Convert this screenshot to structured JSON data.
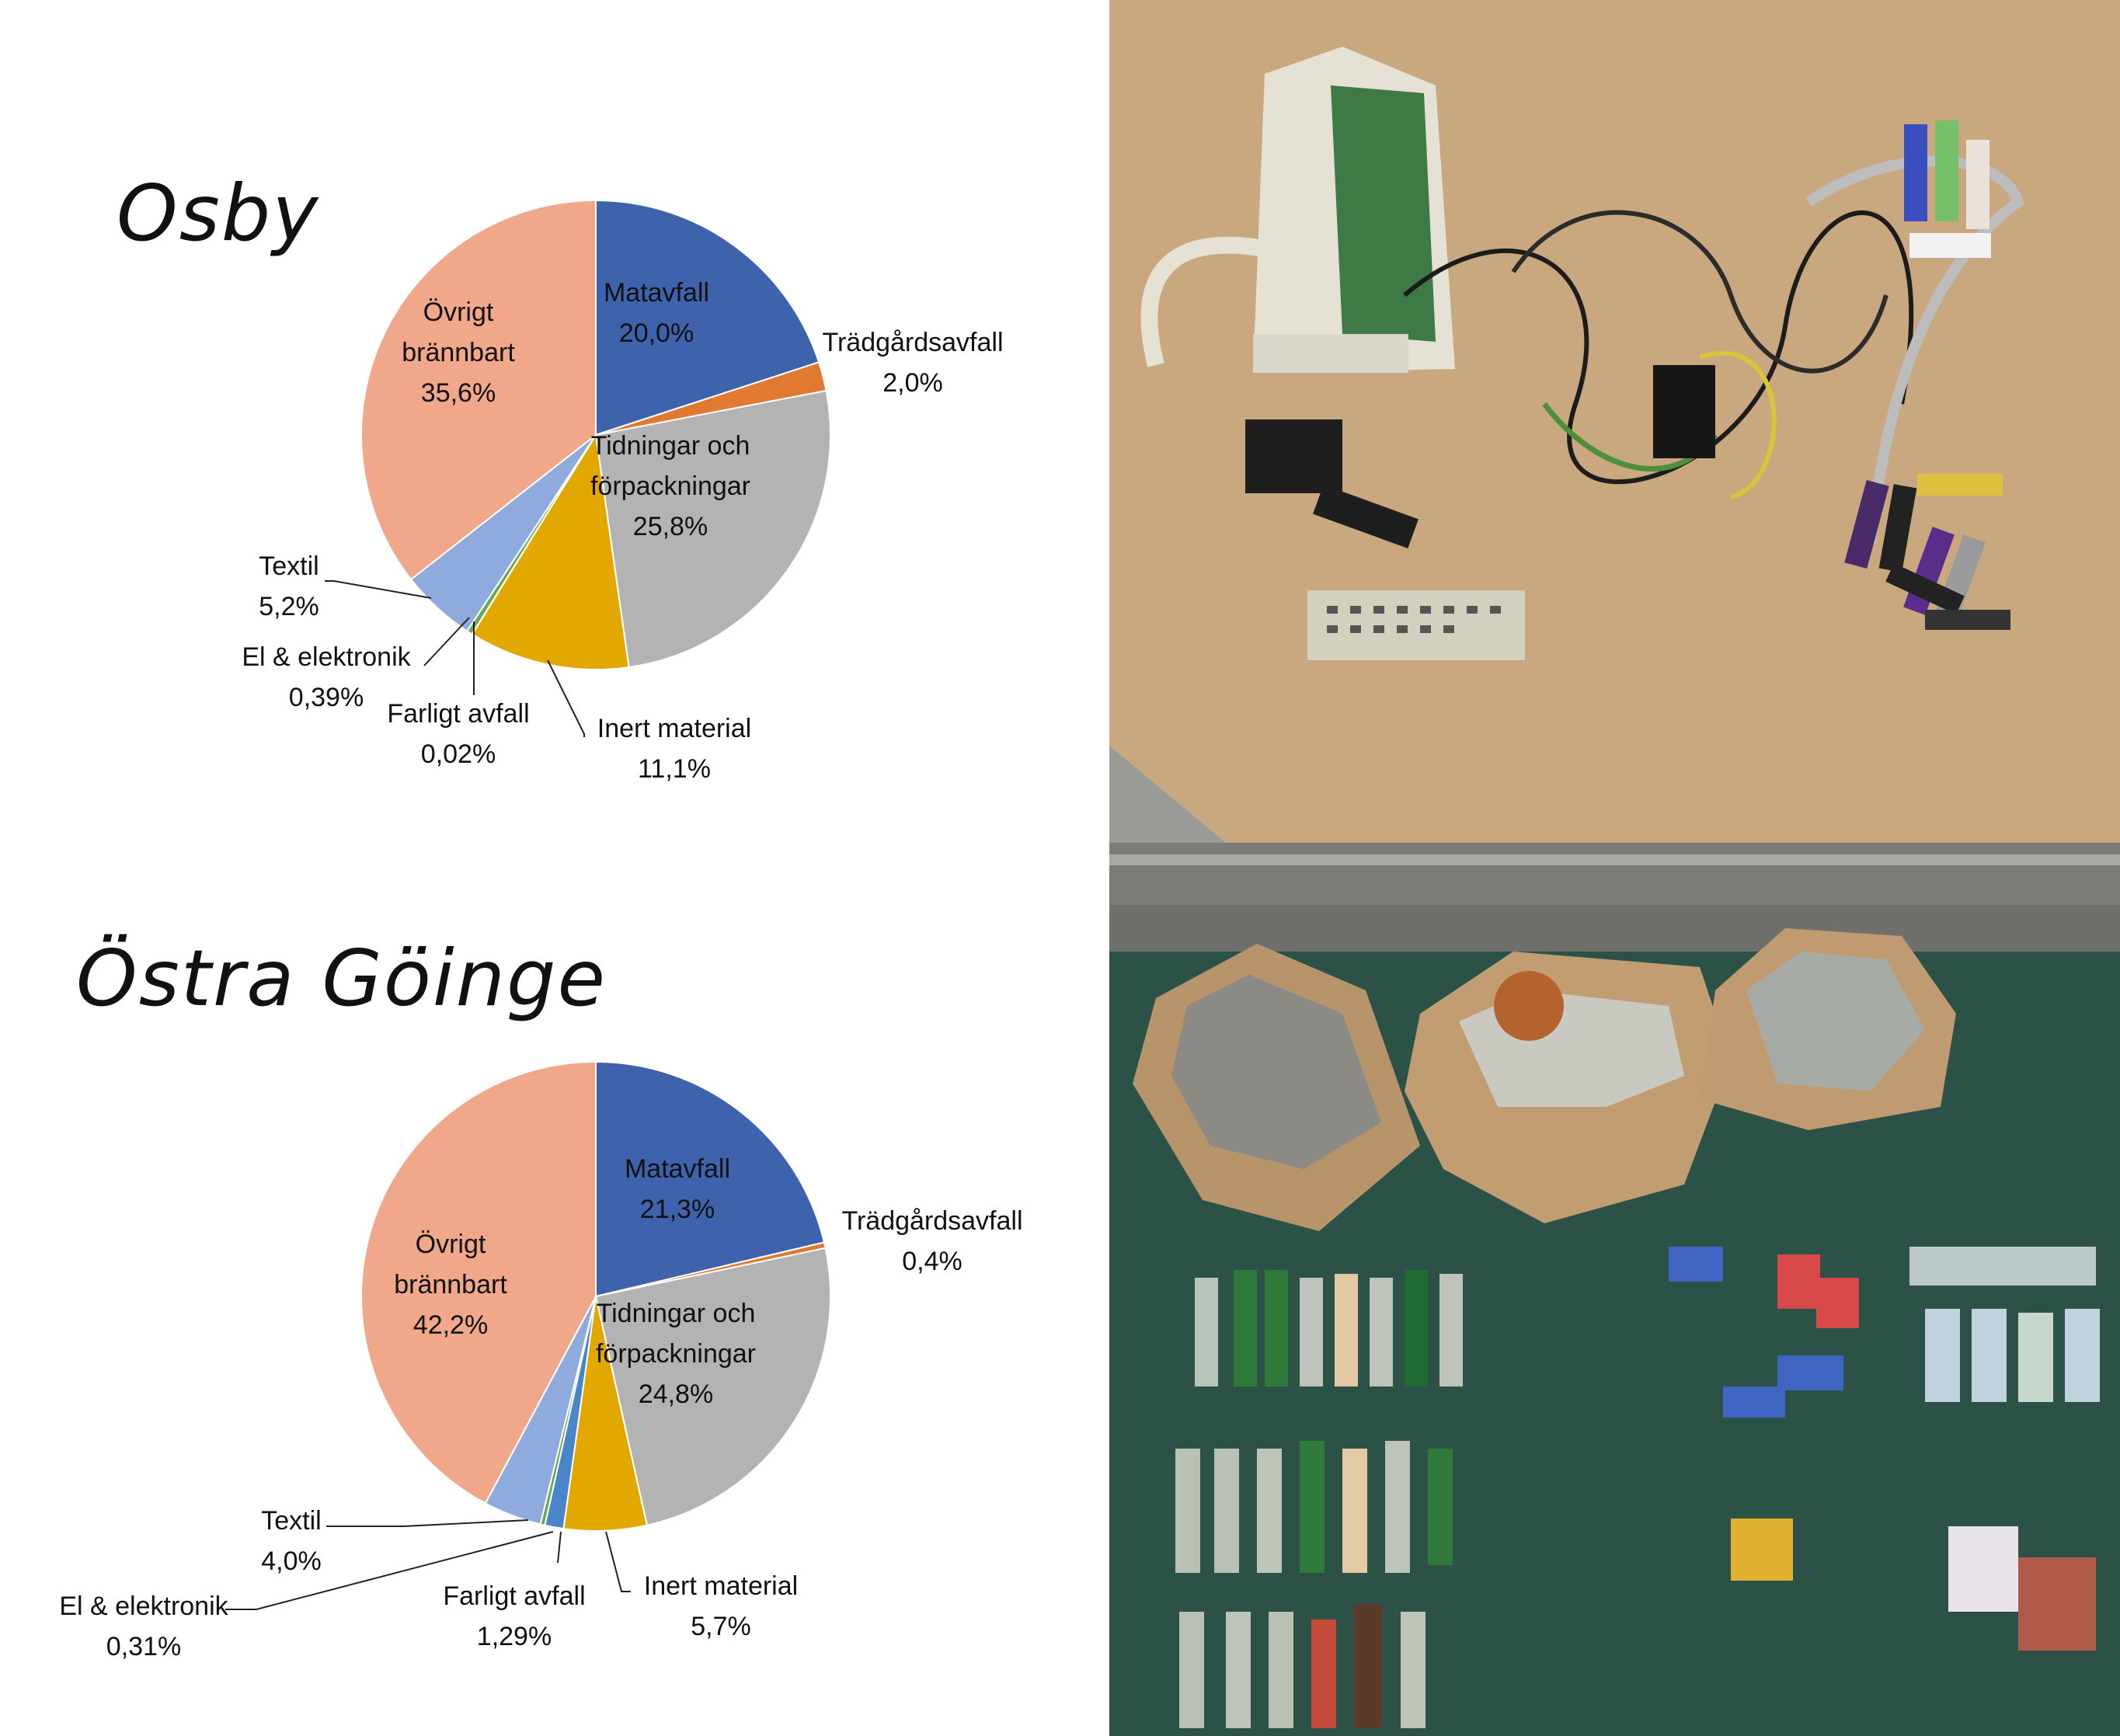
{
  "colors": {
    "matavfall": "#3f62ad",
    "tradgard": "#e07a30",
    "tidningar": "#b3b3b3",
    "inert": "#e3a800",
    "farligt": "#4a86c7",
    "el": "#6aa84f",
    "textil": "#8faadc",
    "ovrigt": "#f0a78a"
  },
  "chart_data": [
    {
      "type": "pie",
      "title": "Osby",
      "slices": [
        {
          "key": "matavfall",
          "label": [
            "Matavfall",
            "20,0%"
          ],
          "value": 20.0
        },
        {
          "key": "tradgard",
          "label": [
            "Trädgårdsavfall",
            "2,0%"
          ],
          "value": 2.0
        },
        {
          "key": "tidningar",
          "label": [
            "Tidningar och",
            "förpackningar",
            "25,8%"
          ],
          "value": 25.8
        },
        {
          "key": "inert",
          "label": [
            "Inert material",
            "11,1%"
          ],
          "value": 11.1
        },
        {
          "key": "farligt",
          "label": [
            "Farligt avfall",
            "0,02%"
          ],
          "value": 0.02
        },
        {
          "key": "el",
          "label": [
            "El & elektronik",
            "0,39%"
          ],
          "value": 0.39
        },
        {
          "key": "textil",
          "label": [
            "Textil",
            "5,2%"
          ],
          "value": 5.2
        },
        {
          "key": "ovrigt",
          "label": [
            "Övrigt",
            "brännbart",
            "35,6%"
          ],
          "value": 35.6
        }
      ]
    },
    {
      "type": "pie",
      "title": "Östra Göinge",
      "slices": [
        {
          "key": "matavfall",
          "label": [
            "Matavfall",
            "21,3%"
          ],
          "value": 21.3
        },
        {
          "key": "tradgard",
          "label": [
            "Trädgårdsavfall",
            "0,4%"
          ],
          "value": 0.4
        },
        {
          "key": "tidningar",
          "label": [
            "Tidningar och",
            "förpackningar",
            "24,8%"
          ],
          "value": 24.8
        },
        {
          "key": "inert",
          "label": [
            "Inert material",
            "5,7%"
          ],
          "value": 5.7
        },
        {
          "key": "farligt",
          "label": [
            "Farligt avfall",
            "1,29%"
          ],
          "value": 1.29
        },
        {
          "key": "el",
          "label": [
            "El & elektronik",
            "0,31%"
          ],
          "value": 0.31
        },
        {
          "key": "textil",
          "label": [
            "Textil",
            "4,0%"
          ],
          "value": 4.0
        },
        {
          "key": "ovrigt",
          "label": [
            "Övrigt",
            "brännbart",
            "42,2%"
          ],
          "value": 42.2
        }
      ]
    }
  ]
}
